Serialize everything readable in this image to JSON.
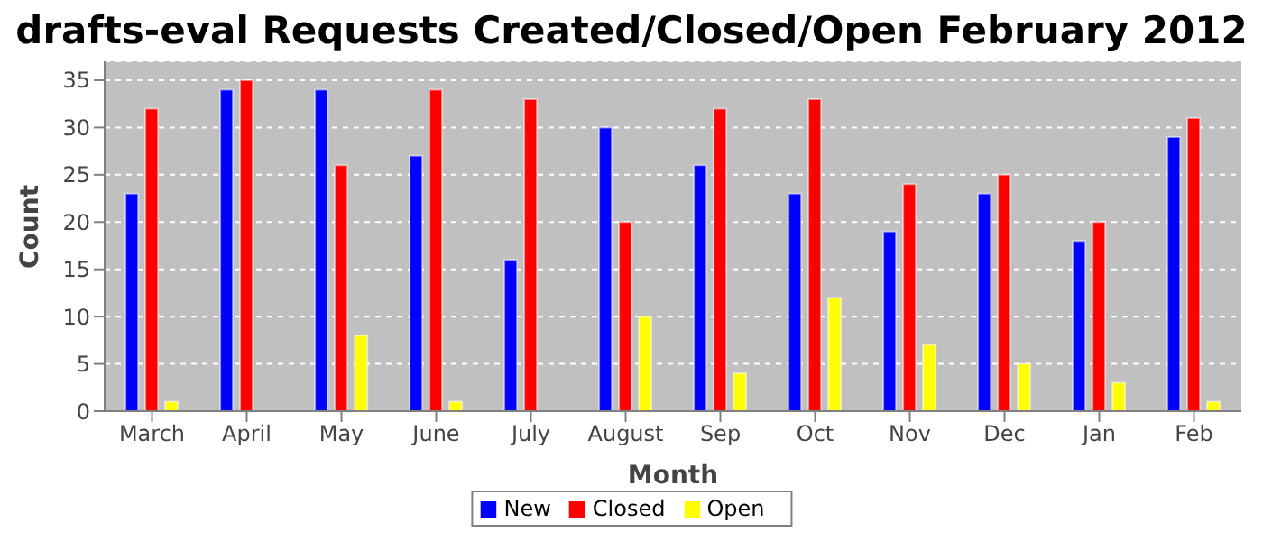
{
  "chart_data": {
    "type": "bar",
    "title": "drafts-eval Requests Created/Closed/Open February 2012",
    "xlabel": "Month",
    "ylabel": "Count",
    "categories": [
      "March",
      "April",
      "May",
      "June",
      "July",
      "August",
      "Sep",
      "Oct",
      "Nov",
      "Dec",
      "Jan",
      "Feb"
    ],
    "series": [
      {
        "name": "New",
        "color": "#0000ff",
        "values": [
          23,
          34,
          34,
          27,
          16,
          30,
          26,
          23,
          19,
          23,
          18,
          29
        ]
      },
      {
        "name": "Closed",
        "color": "#ff0000",
        "values": [
          32,
          35,
          26,
          34,
          33,
          20,
          32,
          33,
          24,
          25,
          20,
          31
        ]
      },
      {
        "name": "Open",
        "color": "#ffff00",
        "values": [
          1,
          0,
          8,
          1,
          0,
          10,
          4,
          12,
          7,
          5,
          3,
          1
        ]
      }
    ],
    "ylim": [
      0,
      37
    ],
    "yticks": [
      0,
      5,
      10,
      15,
      20,
      25,
      30,
      35
    ],
    "grid": "y",
    "legend": "bottom"
  }
}
